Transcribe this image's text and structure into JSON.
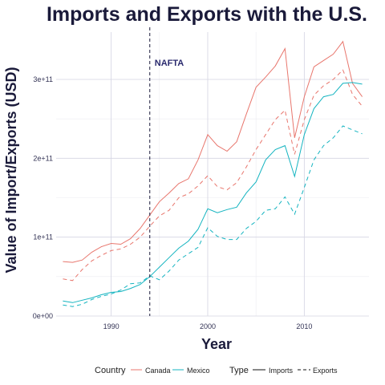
{
  "chart_data": {
    "type": "line",
    "title": "Imports and Exports with the U.S.",
    "xlabel": "Year",
    "ylabel": "Value of Import/Exports (USD)",
    "xlim": [
      1984.3,
      2016.7
    ],
    "ylim": [
      0,
      360000000000.0
    ],
    "x_ticks": [
      1990,
      2000,
      2010
    ],
    "x_tick_labels": [
      "1990",
      "2000",
      "2010"
    ],
    "y_ticks": [
      0,
      100000000000.0,
      200000000000.0,
      300000000000.0
    ],
    "y_tick_labels": [
      "0e+00",
      "1e+11",
      "2e+11",
      "3e+11"
    ],
    "grid": true,
    "legend_position": "bottom",
    "legend": {
      "country_title": "Country",
      "type_title": "Type",
      "country_items": [
        {
          "label": "Canada",
          "color": "#e8766d"
        },
        {
          "label": "Mexico",
          "color": "#14b4c0"
        }
      ],
      "type_items": [
        {
          "label": "Imports",
          "dash": "solid"
        },
        {
          "label": "Exports",
          "dash": "dashed"
        }
      ]
    },
    "annotations": [
      {
        "type": "vline",
        "x": 1994,
        "label": "NAFTA"
      }
    ],
    "x": [
      1985,
      1986,
      1987,
      1988,
      1989,
      1990,
      1991,
      1992,
      1993,
      1994,
      1995,
      1996,
      1997,
      1998,
      1999,
      2000,
      2001,
      2002,
      2003,
      2004,
      2005,
      2006,
      2007,
      2008,
      2009,
      2010,
      2011,
      2012,
      2013,
      2014,
      2015,
      2016
    ],
    "series": [
      {
        "name": "Canada",
        "type": "Imports",
        "color": "#e8766d",
        "dash": "solid",
        "values": [
          69000000000.0,
          68000000000.0,
          71000000000.0,
          81000000000.0,
          88000000000.0,
          92000000000.0,
          91000000000.0,
          98000000000.0,
          111000000000.0,
          128000000000.0,
          145000000000.0,
          156000000000.0,
          168000000000.0,
          174000000000.0,
          198000000000.0,
          230000000000.0,
          216000000000.0,
          209000000000.0,
          221000000000.0,
          256000000000.0,
          290000000000.0,
          303000000000.0,
          317000000000.0,
          339000000000.0,
          226000000000.0,
          278000000000.0,
          316000000000.0,
          324000000000.0,
          332000000000.0,
          348000000000.0,
          295000000000.0,
          278000000000.0
        ]
      },
      {
        "name": "Canada",
        "type": "Exports",
        "color": "#e8766d",
        "dash": "dashed",
        "values": [
          47000000000.0,
          45000000000.0,
          59000000000.0,
          70000000000.0,
          77000000000.0,
          83000000000.0,
          85000000000.0,
          91000000000.0,
          100000000000.0,
          114000000000.0,
          127000000000.0,
          134000000000.0,
          150000000000.0,
          155000000000.0,
          165000000000.0,
          178000000000.0,
          164000000000.0,
          160000000000.0,
          169000000000.0,
          189000000000.0,
          211000000000.0,
          230000000000.0,
          249000000000.0,
          261000000000.0,
          205000000000.0,
          249000000000.0,
          280000000000.0,
          292000000000.0,
          300000000000.0,
          312000000000.0,
          281000000000.0,
          266000000000.0
        ]
      },
      {
        "name": "Mexico",
        "type": "Imports",
        "color": "#14b4c0",
        "dash": "solid",
        "values": [
          19000000000.0,
          17000000000.0,
          20000000000.0,
          23000000000.0,
          27000000000.0,
          30000000000.0,
          31000000000.0,
          35000000000.0,
          40000000000.0,
          50000000000.0,
          62000000000.0,
          74000000000.0,
          86000000000.0,
          95000000000.0,
          110000000000.0,
          136000000000.0,
          131000000000.0,
          135000000000.0,
          138000000000.0,
          156000000000.0,
          170000000000.0,
          198000000000.0,
          211000000000.0,
          216000000000.0,
          177000000000.0,
          230000000000.0,
          263000000000.0,
          278000000000.0,
          281000000000.0,
          295000000000.0,
          296000000000.0,
          294000000000.0
        ]
      },
      {
        "name": "Mexico",
        "type": "Exports",
        "color": "#14b4c0",
        "dash": "dashed",
        "values": [
          14000000000.0,
          12000000000.0,
          15000000000.0,
          21000000000.0,
          25000000000.0,
          28000000000.0,
          33000000000.0,
          41000000000.0,
          42000000000.0,
          51000000000.0,
          46000000000.0,
          57000000000.0,
          71000000000.0,
          79000000000.0,
          87000000000.0,
          112000000000.0,
          101000000000.0,
          97000000000.0,
          97000000000.0,
          111000000000.0,
          120000000000.0,
          134000000000.0,
          136000000000.0,
          151000000000.0,
          129000000000.0,
          163000000000.0,
          198000000000.0,
          216000000000.0,
          226000000000.0,
          241000000000.0,
          236000000000.0,
          231000000000.0
        ]
      }
    ]
  }
}
